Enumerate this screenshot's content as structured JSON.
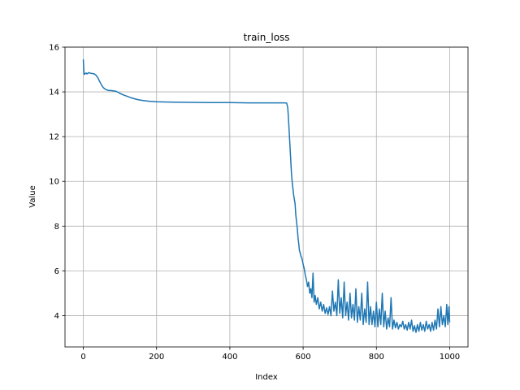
{
  "chart_data": {
    "type": "line",
    "title": "train_loss",
    "xlabel": "Index",
    "ylabel": "Value",
    "xlim": [
      -50,
      1050
    ],
    "ylim": [
      2.6,
      16
    ],
    "xticks": [
      0,
      200,
      400,
      600,
      800,
      1000
    ],
    "yticks": [
      4,
      6,
      8,
      10,
      12,
      14,
      16
    ],
    "grid": true,
    "series": [
      {
        "color": "#1f77b4",
        "points": [
          [
            0,
            15.45
          ],
          [
            1,
            15.1
          ],
          [
            2,
            14.8
          ],
          [
            3,
            14.78
          ],
          [
            5,
            14.82
          ],
          [
            8,
            14.84
          ],
          [
            10,
            14.8
          ],
          [
            15,
            14.86
          ],
          [
            20,
            14.83
          ],
          [
            25,
            14.82
          ],
          [
            30,
            14.8
          ],
          [
            35,
            14.74
          ],
          [
            40,
            14.62
          ],
          [
            45,
            14.45
          ],
          [
            50,
            14.3
          ],
          [
            55,
            14.18
          ],
          [
            60,
            14.12
          ],
          [
            65,
            14.08
          ],
          [
            70,
            14.06
          ],
          [
            75,
            14.06
          ],
          [
            80,
            14.05
          ],
          [
            85,
            14.04
          ],
          [
            90,
            14.02
          ],
          [
            95,
            13.98
          ],
          [
            100,
            13.93
          ],
          [
            110,
            13.86
          ],
          [
            120,
            13.8
          ],
          [
            130,
            13.74
          ],
          [
            140,
            13.69
          ],
          [
            150,
            13.65
          ],
          [
            160,
            13.62
          ],
          [
            170,
            13.6
          ],
          [
            180,
            13.58
          ],
          [
            190,
            13.57
          ],
          [
            200,
            13.56
          ],
          [
            220,
            13.55
          ],
          [
            250,
            13.54
          ],
          [
            300,
            13.53
          ],
          [
            350,
            13.52
          ],
          [
            400,
            13.52
          ],
          [
            450,
            13.51
          ],
          [
            500,
            13.51
          ],
          [
            530,
            13.51
          ],
          [
            550,
            13.51
          ],
          [
            555,
            13.5
          ],
          [
            558,
            13.3
          ],
          [
            560,
            12.8
          ],
          [
            562,
            12.2
          ],
          [
            564,
            11.6
          ],
          [
            566,
            11.0
          ],
          [
            568,
            10.4
          ],
          [
            570,
            10.0
          ],
          [
            572,
            9.7
          ],
          [
            574,
            9.4
          ],
          [
            576,
            9.2
          ],
          [
            578,
            9.0
          ],
          [
            580,
            8.5
          ],
          [
            582,
            8.2
          ],
          [
            584,
            7.9
          ],
          [
            586,
            7.5
          ],
          [
            588,
            7.2
          ],
          [
            590,
            6.9
          ],
          [
            592,
            6.8
          ],
          [
            594,
            6.65
          ],
          [
            596,
            6.6
          ],
          [
            598,
            6.45
          ],
          [
            600,
            6.3
          ],
          [
            603,
            6.1
          ],
          [
            606,
            5.8
          ],
          [
            609,
            5.6
          ],
          [
            612,
            5.3
          ],
          [
            615,
            5.5
          ],
          [
            618,
            5.0
          ],
          [
            621,
            5.2
          ],
          [
            624,
            4.8
          ],
          [
            627,
            5.9
          ],
          [
            630,
            4.6
          ],
          [
            633,
            4.9
          ],
          [
            636,
            4.5
          ],
          [
            640,
            4.8
          ],
          [
            644,
            4.3
          ],
          [
            648,
            4.6
          ],
          [
            652,
            4.2
          ],
          [
            656,
            4.5
          ],
          [
            660,
            4.1
          ],
          [
            664,
            4.35
          ],
          [
            668,
            4.05
          ],
          [
            672,
            4.4
          ],
          [
            676,
            4.0
          ],
          [
            680,
            5.1
          ],
          [
            684,
            4.2
          ],
          [
            688,
            4.6
          ],
          [
            692,
            4.0
          ],
          [
            696,
            5.6
          ],
          [
            700,
            4.1
          ],
          [
            704,
            4.8
          ],
          [
            708,
            3.9
          ],
          [
            712,
            5.5
          ],
          [
            716,
            4.0
          ],
          [
            720,
            4.6
          ],
          [
            724,
            3.8
          ],
          [
            728,
            5.0
          ],
          [
            732,
            3.9
          ],
          [
            736,
            4.5
          ],
          [
            740,
            3.8
          ],
          [
            744,
            5.2
          ],
          [
            748,
            3.7
          ],
          [
            752,
            4.4
          ],
          [
            756,
            3.8
          ],
          [
            760,
            5.0
          ],
          [
            764,
            3.6
          ],
          [
            768,
            4.3
          ],
          [
            772,
            3.7
          ],
          [
            776,
            5.5
          ],
          [
            780,
            3.6
          ],
          [
            784,
            4.4
          ],
          [
            788,
            3.6
          ],
          [
            792,
            4.2
          ],
          [
            796,
            3.5
          ],
          [
            800,
            4.6
          ],
          [
            804,
            3.5
          ],
          [
            808,
            4.3
          ],
          [
            812,
            3.6
          ],
          [
            816,
            5.0
          ],
          [
            820,
            3.5
          ],
          [
            824,
            4.2
          ],
          [
            828,
            3.4
          ],
          [
            832,
            3.9
          ],
          [
            836,
            3.5
          ],
          [
            840,
            4.8
          ],
          [
            844,
            3.4
          ],
          [
            848,
            3.8
          ],
          [
            852,
            3.45
          ],
          [
            856,
            3.7
          ],
          [
            860,
            3.4
          ],
          [
            864,
            3.6
          ],
          [
            868,
            3.5
          ],
          [
            872,
            3.75
          ],
          [
            876,
            3.4
          ],
          [
            880,
            3.6
          ],
          [
            884,
            3.35
          ],
          [
            888,
            3.7
          ],
          [
            892,
            3.4
          ],
          [
            896,
            3.8
          ],
          [
            900,
            3.3
          ],
          [
            904,
            3.55
          ],
          [
            908,
            3.25
          ],
          [
            912,
            3.6
          ],
          [
            916,
            3.3
          ],
          [
            920,
            3.7
          ],
          [
            924,
            3.35
          ],
          [
            928,
            3.6
          ],
          [
            932,
            3.3
          ],
          [
            936,
            3.75
          ],
          [
            940,
            3.4
          ],
          [
            944,
            3.6
          ],
          [
            948,
            3.3
          ],
          [
            952,
            3.7
          ],
          [
            956,
            3.35
          ],
          [
            960,
            3.8
          ],
          [
            964,
            3.4
          ],
          [
            968,
            4.3
          ],
          [
            972,
            3.5
          ],
          [
            976,
            4.4
          ],
          [
            980,
            3.6
          ],
          [
            984,
            4.0
          ],
          [
            988,
            3.5
          ],
          [
            992,
            4.5
          ],
          [
            995,
            3.6
          ],
          [
            998,
            4.4
          ],
          [
            1000,
            3.7
          ]
        ]
      }
    ]
  }
}
